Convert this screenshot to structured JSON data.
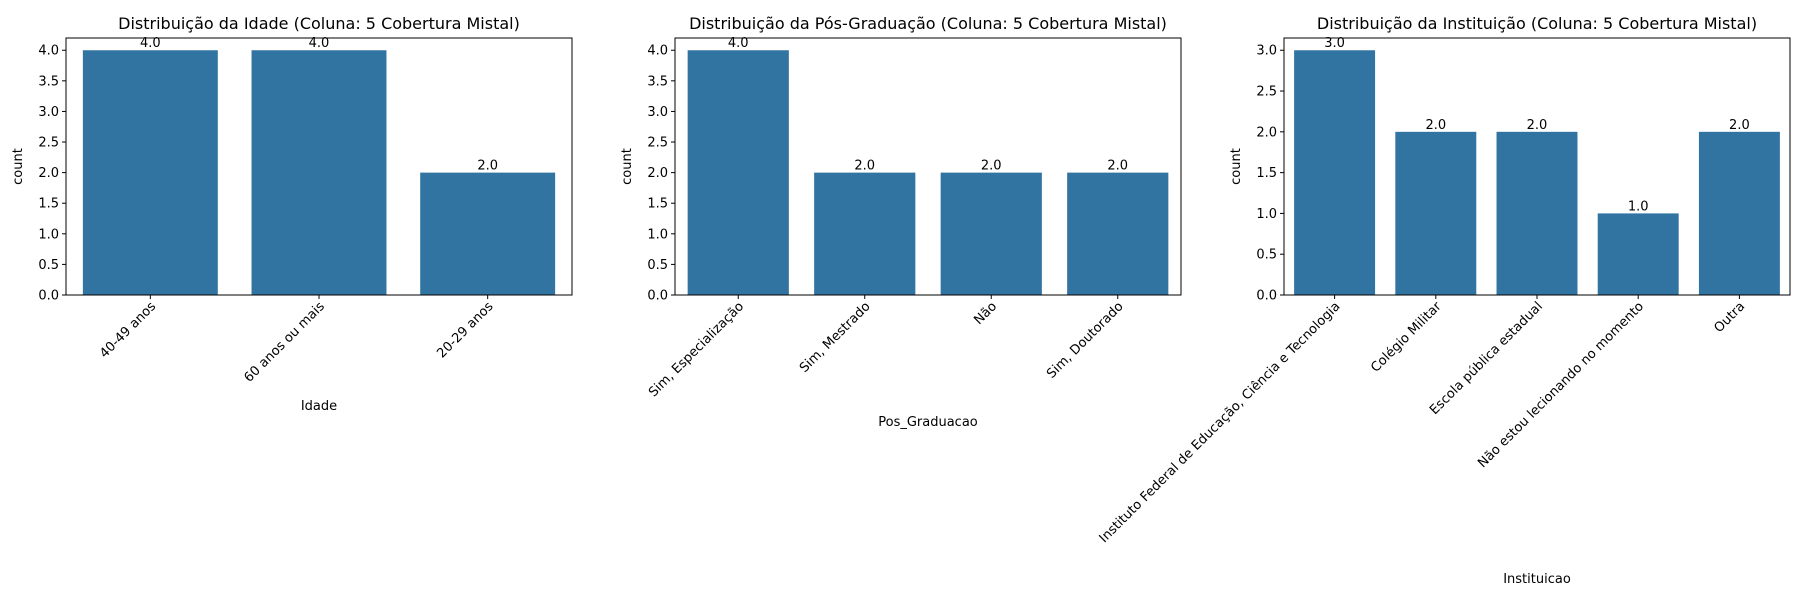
{
  "chart_data": [
    {
      "type": "bar",
      "title": "Distribuição da Idade (Coluna: 5 Cobertura Mistal)",
      "xlabel": "Idade",
      "ylabel": "count",
      "categories": [
        "40-49 anos",
        "60 anos ou mais",
        "20-29 anos"
      ],
      "values": [
        4.0,
        4.0,
        2.0
      ],
      "data_labels": [
        "4.0",
        "4.0",
        "2.0"
      ],
      "ylim": [
        0,
        4.2
      ],
      "yticks": [
        "0.0",
        "0.5",
        "1.0",
        "1.5",
        "2.0",
        "2.5",
        "3.0",
        "3.5",
        "4.0"
      ],
      "grid": false,
      "bar_color": "#3274a1",
      "xtick_rotation_deg": 45
    },
    {
      "type": "bar",
      "title": "Distribuição da Pós-Graduação (Coluna: 5 Cobertura Mistal)",
      "xlabel": "Pos_Graduacao",
      "ylabel": "count",
      "categories": [
        "Sim, Especialização",
        "Sim, Mestrado",
        "Não",
        "Sim, Doutorado"
      ],
      "values": [
        4.0,
        2.0,
        2.0,
        2.0
      ],
      "data_labels": [
        "4.0",
        "2.0",
        "2.0",
        "2.0"
      ],
      "ylim": [
        0,
        4.2
      ],
      "yticks": [
        "0.0",
        "0.5",
        "1.0",
        "1.5",
        "2.0",
        "2.5",
        "3.0",
        "3.5",
        "4.0"
      ],
      "grid": false,
      "bar_color": "#3274a1",
      "xtick_rotation_deg": 45
    },
    {
      "type": "bar",
      "title": "Distribuição da Instituição (Coluna: 5 Cobertura Mistal)",
      "xlabel": "Instituicao",
      "ylabel": "count",
      "categories": [
        "Instituto Federal de Educação, Ciência e Tecnologia",
        "Colégio Militar",
        "Escola pública estadual",
        "Não estou lecionando no momento",
        "Outra"
      ],
      "values": [
        3.0,
        2.0,
        2.0,
        1.0,
        2.0
      ],
      "data_labels": [
        "3.0",
        "2.0",
        "2.0",
        "1.0",
        "2.0"
      ],
      "ylim": [
        0,
        3.15
      ],
      "yticks": [
        "0.0",
        "0.5",
        "1.0",
        "1.5",
        "2.0",
        "2.5",
        "3.0"
      ],
      "grid": false,
      "bar_color": "#3274a1",
      "xtick_rotation_deg": 45
    }
  ]
}
